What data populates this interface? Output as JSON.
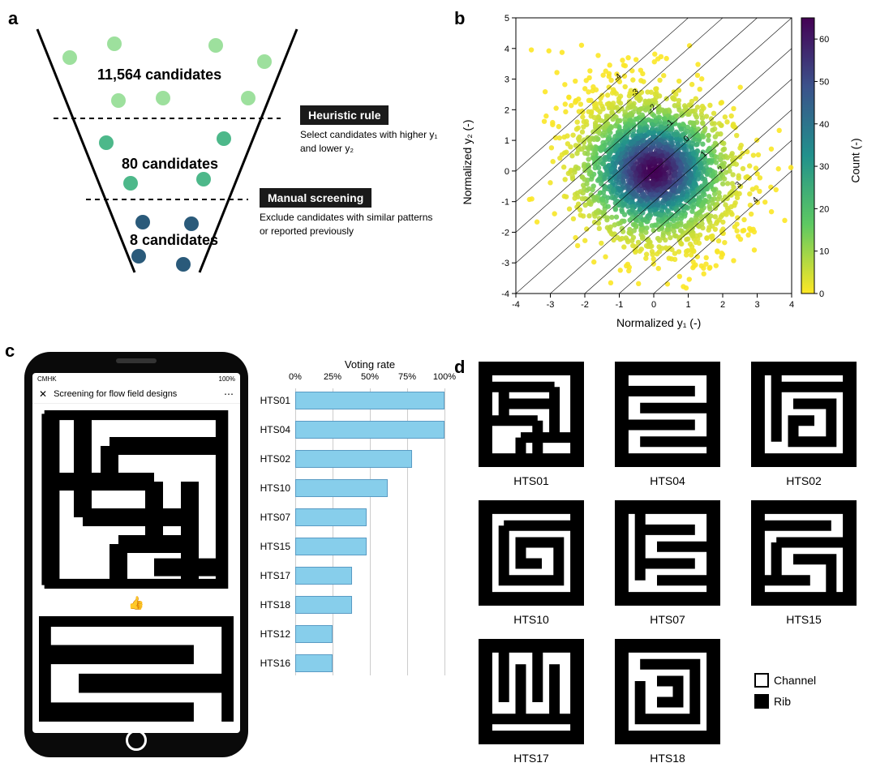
{
  "panelA": {
    "label": "a",
    "stages": [
      {
        "text": "11,564 candidates",
        "color": "#9de09d",
        "fontsize": 18
      },
      {
        "text": "80 candidates",
        "color": "#4db88a",
        "fontsize": 18
      },
      {
        "text": "8 candidates",
        "color": "#2a5a7a",
        "fontsize": 18
      }
    ],
    "rule1_title": "Heuristic rule",
    "rule1_desc": "Select candidates with higher y₁ and lower y₂",
    "rule2_title": "Manual screening",
    "rule2_desc": "Exclude candidates with similar patterns or reported previously"
  },
  "panelB": {
    "label": "b",
    "xlabel": "Normalized y₁ (-)",
    "ylabel": "Normalized y₂ (-)",
    "colorbar_label": "Count (-)",
    "xlim": [
      -4,
      4
    ],
    "ylim": [
      -4,
      5
    ],
    "xtick_step": 1,
    "ytick_step": 1,
    "contour_labels": [
      "-4",
      "-3",
      "-2",
      "-1",
      "0",
      "1",
      "2",
      "3",
      "4"
    ],
    "colormap_stops": [
      {
        "v": 0,
        "c": "#fde725"
      },
      {
        "v": 0.25,
        "c": "#5ec962"
      },
      {
        "v": 0.5,
        "c": "#21918c"
      },
      {
        "v": 0.75,
        "c": "#3b528b"
      },
      {
        "v": 1,
        "c": "#440154"
      }
    ],
    "cbar_ticks": [
      0,
      10,
      20,
      30,
      40,
      50,
      60
    ]
  },
  "panelC": {
    "label": "c",
    "phone_title": "Screening for flow field designs",
    "phone_carrier": "CMHK",
    "phone_battery": "100%",
    "chart_title": "Voting rate",
    "ticks": [
      "0%",
      "25%",
      "50%",
      "75%",
      "100%"
    ],
    "bars": [
      {
        "label": "HTS01",
        "value": 100
      },
      {
        "label": "HTS04",
        "value": 100
      },
      {
        "label": "HTS02",
        "value": 78
      },
      {
        "label": "HTS10",
        "value": 62
      },
      {
        "label": "HTS07",
        "value": 48
      },
      {
        "label": "HTS15",
        "value": 48
      },
      {
        "label": "HTS17",
        "value": 38
      },
      {
        "label": "HTS18",
        "value": 38
      },
      {
        "label": "HTS12",
        "value": 25
      },
      {
        "label": "HTS16",
        "value": 25
      }
    ],
    "bar_color": "#87ceeb",
    "bar_border": "#5a9bc4"
  },
  "panelD": {
    "label": "d",
    "mazes": [
      "HTS01",
      "HTS04",
      "HTS02",
      "HTS10",
      "HTS07",
      "HTS15",
      "HTS17",
      "HTS18"
    ],
    "legend": [
      {
        "label": "Channel",
        "fill": "#ffffff"
      },
      {
        "label": "Rib",
        "fill": "#000000"
      }
    ]
  }
}
